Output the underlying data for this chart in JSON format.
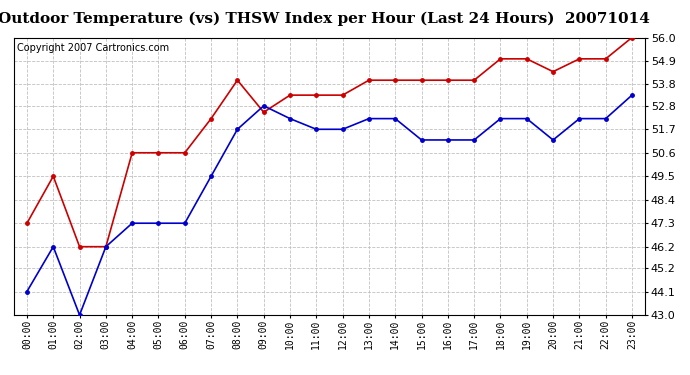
{
  "title": "Outdoor Temperature (vs) THSW Index per Hour (Last 24 Hours)  20071014",
  "copyright": "Copyright 2007 Cartronics.com",
  "hours": [
    "00:00",
    "01:00",
    "02:00",
    "03:00",
    "04:00",
    "05:00",
    "06:00",
    "07:00",
    "08:00",
    "09:00",
    "10:00",
    "11:00",
    "12:00",
    "13:00",
    "14:00",
    "15:00",
    "16:00",
    "17:00",
    "18:00",
    "19:00",
    "20:00",
    "21:00",
    "22:00",
    "23:00"
  ],
  "temp_blue": [
    44.1,
    46.2,
    43.0,
    46.2,
    47.3,
    47.3,
    47.3,
    49.5,
    51.7,
    52.8,
    52.2,
    51.7,
    51.7,
    52.2,
    52.2,
    51.2,
    51.2,
    51.2,
    52.2,
    52.2,
    51.2,
    52.2,
    52.2,
    53.3
  ],
  "thsw_red": [
    47.3,
    49.5,
    46.2,
    46.2,
    50.6,
    50.6,
    50.6,
    52.2,
    54.0,
    52.5,
    53.3,
    53.3,
    53.3,
    54.0,
    54.0,
    54.0,
    54.0,
    54.0,
    55.0,
    55.0,
    54.4,
    55.0,
    55.0,
    56.0
  ],
  "ylim": [
    43.0,
    56.0
  ],
  "yticks": [
    43.0,
    44.1,
    45.2,
    46.2,
    47.3,
    48.4,
    49.5,
    50.6,
    51.7,
    52.8,
    53.8,
    54.9,
    56.0
  ],
  "ytick_labels": [
    "43.0",
    "44.1",
    "45.2",
    "46.2",
    "47.3",
    "48.4",
    "49.5",
    "50.6",
    "51.7",
    "52.8",
    "53.8",
    "54.9",
    "56.0"
  ],
  "blue_color": "#0000cc",
  "red_color": "#cc0000",
  "bg_color": "#ffffff",
  "plot_bg_color": "#ffffff",
  "grid_color": "#c0c0c0",
  "title_fontsize": 11,
  "copyright_fontsize": 7,
  "tick_fontsize": 7,
  "ytick_fontsize": 8
}
